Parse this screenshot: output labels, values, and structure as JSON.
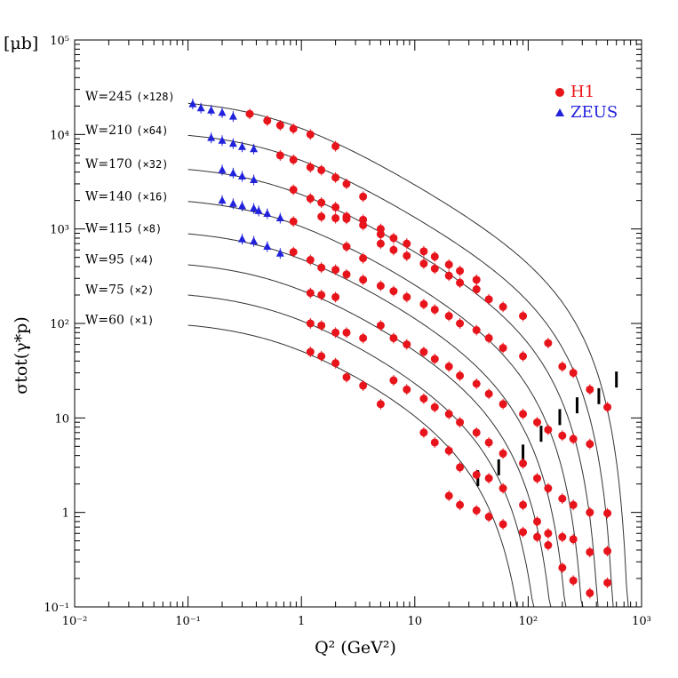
{
  "chart_data": {
    "type": "scatter",
    "title": "",
    "xlabel": "Q² (GeV²)",
    "ylabel": "σtot(γ*p)",
    "y_unit": "[μb]",
    "x_scale": "log",
    "y_scale": "log",
    "xlim": [
      0.01,
      1000
    ],
    "ylim": [
      0.1,
      100000
    ],
    "x_ticks": [
      {
        "value": 0.01,
        "label": "10⁻²"
      },
      {
        "value": 0.1,
        "label": "10⁻¹"
      },
      {
        "value": 1,
        "label": "1"
      },
      {
        "value": 10,
        "label": "10"
      },
      {
        "value": 100,
        "label": "10²"
      },
      {
        "value": 1000,
        "label": "10³"
      }
    ],
    "y_ticks": [
      {
        "value": 0.1,
        "label": "10⁻¹"
      },
      {
        "value": 1,
        "label": "1"
      },
      {
        "value": 10,
        "label": "10"
      },
      {
        "value": 100,
        "label": "10²"
      },
      {
        "value": 1000,
        "label": "10³"
      },
      {
        "value": 10000,
        "label": "10⁴"
      },
      {
        "value": 100000,
        "label": "10⁵"
      }
    ],
    "grid": false,
    "legend_position": "top-right",
    "legend": [
      {
        "name": "H1",
        "marker": "circle",
        "color": "#e8141b"
      },
      {
        "name": "ZEUS",
        "marker": "triangle",
        "color": "#2222dd"
      }
    ],
    "curve_labels": [
      {
        "w": "W=245",
        "mult": "(×128)",
        "y": 25000
      },
      {
        "w": "W=210",
        "mult": "(×64)",
        "y": 11000
      },
      {
        "w": "W=170",
        "mult": "(×32)",
        "y": 4800
      },
      {
        "w": "W=140",
        "mult": "(×16)",
        "y": 2200
      },
      {
        "w": "W=115",
        "mult": "(×8)",
        "y": 1000
      },
      {
        "w": "W=95",
        "mult": "(×4)",
        "y": 470
      },
      {
        "w": "W=75",
        "mult": "(×2)",
        "y": 225
      },
      {
        "w": "W=60",
        "mult": "(×1)",
        "y": 108
      }
    ],
    "curves": [
      {
        "w": 245,
        "norm": 24000,
        "q0": 0.55,
        "p": 0.7,
        "s": 820
      },
      {
        "w": 210,
        "norm": 11000,
        "q0": 0.55,
        "p": 0.7,
        "s": 620
      },
      {
        "w": 170,
        "norm": 4800,
        "q0": 0.55,
        "p": 0.7,
        "s": 470
      },
      {
        "w": 140,
        "norm": 2200,
        "q0": 0.55,
        "p": 0.7,
        "s": 350
      },
      {
        "w": 115,
        "norm": 1000,
        "q0": 0.55,
        "p": 0.7,
        "s": 260
      },
      {
        "w": 95,
        "norm": 470,
        "q0": 0.55,
        "p": 0.7,
        "s": 200
      },
      {
        "w": 75,
        "norm": 225,
        "q0": 0.55,
        "p": 0.7,
        "s": 150
      },
      {
        "w": 60,
        "norm": 108,
        "q0": 0.55,
        "p": 0.7,
        "s": 115
      }
    ],
    "series": [
      {
        "name": "ZEUS",
        "marker": "triangle",
        "color": "#2222dd",
        "points": [
          [
            0.11,
            21000
          ],
          [
            0.13,
            19000
          ],
          [
            0.16,
            18000
          ],
          [
            0.2,
            17000
          ],
          [
            0.25,
            15500
          ],
          [
            0.16,
            9200
          ],
          [
            0.2,
            8600
          ],
          [
            0.25,
            8000
          ],
          [
            0.3,
            7400
          ],
          [
            0.38,
            7000
          ],
          [
            0.2,
            4200
          ],
          [
            0.25,
            3900
          ],
          [
            0.3,
            3600
          ],
          [
            0.38,
            3300
          ],
          [
            0.2,
            2000
          ],
          [
            0.25,
            1850
          ],
          [
            0.3,
            1750
          ],
          [
            0.38,
            1650
          ],
          [
            0.42,
            1550
          ],
          [
            0.5,
            1450
          ],
          [
            0.65,
            1300
          ],
          [
            0.3,
            780
          ],
          [
            0.38,
            740
          ],
          [
            0.5,
            650
          ],
          [
            0.65,
            550
          ]
        ]
      },
      {
        "name": "H1",
        "marker": "circle",
        "color": "#e8141b",
        "points": [
          [
            0.35,
            16500
          ],
          [
            0.5,
            14000
          ],
          [
            0.65,
            12500
          ],
          [
            0.85,
            11500
          ],
          [
            1.2,
            10000
          ],
          [
            2.0,
            7500
          ],
          [
            0.65,
            6000
          ],
          [
            0.85,
            5400
          ],
          [
            1.2,
            4500
          ],
          [
            1.5,
            4200
          ],
          [
            2.0,
            3500
          ],
          [
            2.5,
            3000
          ],
          [
            3.5,
            2200
          ],
          [
            0.85,
            2600
          ],
          [
            1.2,
            2100
          ],
          [
            1.5,
            1900
          ],
          [
            2.0,
            1700
          ],
          [
            2.5,
            1350
          ],
          [
            3.5,
            1250
          ],
          [
            5.0,
            1000
          ],
          [
            0.85,
            1200
          ],
          [
            1.5,
            1350
          ],
          [
            2.0,
            1300
          ],
          [
            2.5,
            1280
          ],
          [
            3.5,
            1100
          ],
          [
            5.0,
            880
          ],
          [
            6.5,
            800
          ],
          [
            8.5,
            700
          ],
          [
            12,
            580
          ],
          [
            15,
            510
          ],
          [
            20,
            420
          ],
          [
            25,
            360
          ],
          [
            35,
            290
          ],
          [
            0.85,
            570
          ],
          [
            1.2,
            470
          ],
          [
            1.5,
            390
          ],
          [
            2.0,
            370
          ],
          [
            2.5,
            650
          ],
          [
            3.5,
            490
          ],
          [
            5.0,
            700
          ],
          [
            6.5,
            600
          ],
          [
            8.5,
            520
          ],
          [
            12,
            430
          ],
          [
            15,
            380
          ],
          [
            20,
            320
          ],
          [
            25,
            270
          ],
          [
            35,
            230
          ],
          [
            45,
            180
          ],
          [
            60,
            150
          ],
          [
            90,
            120
          ],
          [
            1.2,
            210
          ],
          [
            1.5,
            200
          ],
          [
            2.0,
            190
          ],
          [
            2.5,
            330
          ],
          [
            3.5,
            290
          ],
          [
            5.0,
            250
          ],
          [
            6.5,
            220
          ],
          [
            8.5,
            190
          ],
          [
            12,
            160
          ],
          [
            15,
            140
          ],
          [
            20,
            120
          ],
          [
            25,
            100
          ],
          [
            35,
            85
          ],
          [
            45,
            70
          ],
          [
            60,
            55
          ],
          [
            90,
            45
          ],
          [
            150,
            62
          ],
          [
            200,
            35
          ],
          [
            250,
            30
          ],
          [
            350,
            20
          ],
          [
            500,
            13
          ],
          [
            1.2,
            100
          ],
          [
            1.5,
            95
          ],
          [
            2.0,
            80
          ],
          [
            2.5,
            80
          ],
          [
            3.5,
            70
          ],
          [
            5.0,
            95
          ],
          [
            6.5,
            70
          ],
          [
            8.5,
            60
          ],
          [
            12,
            50
          ],
          [
            15,
            42
          ],
          [
            20,
            35
          ],
          [
            25,
            28
          ],
          [
            35,
            23
          ],
          [
            45,
            18
          ],
          [
            60,
            14
          ],
          [
            90,
            11
          ],
          [
            120,
            9
          ],
          [
            150,
            7.5
          ],
          [
            200,
            6.5
          ],
          [
            250,
            6
          ],
          [
            350,
            5.3
          ],
          [
            1.2,
            50
          ],
          [
            1.5,
            45
          ],
          [
            2.0,
            38
          ],
          [
            2.5,
            27
          ],
          [
            3.5,
            22
          ],
          [
            5.0,
            14
          ],
          [
            6.5,
            25
          ],
          [
            8.5,
            20
          ],
          [
            12,
            16
          ],
          [
            15,
            13
          ],
          [
            20,
            11
          ],
          [
            25,
            9
          ],
          [
            35,
            7
          ],
          [
            45,
            5.5
          ],
          [
            60,
            4.2
          ],
          [
            90,
            3.3
          ],
          [
            120,
            2.3
          ],
          [
            150,
            1.8
          ],
          [
            200,
            1.4
          ],
          [
            250,
            1.2
          ],
          [
            350,
            1.0
          ],
          [
            500,
            0.98
          ],
          [
            12,
            7
          ],
          [
            15,
            5.5
          ],
          [
            20,
            4.5
          ],
          [
            25,
            3
          ],
          [
            35,
            2.5
          ],
          [
            45,
            2.3
          ],
          [
            60,
            1.8
          ],
          [
            90,
            1.2
          ],
          [
            120,
            0.8
          ],
          [
            150,
            0.6
          ],
          [
            200,
            0.55
          ],
          [
            250,
            0.52
          ],
          [
            350,
            0.38
          ],
          [
            500,
            0.39
          ],
          [
            20,
            1.5
          ],
          [
            25,
            1.2
          ],
          [
            35,
            1.05
          ],
          [
            45,
            0.9
          ],
          [
            60,
            0.75
          ],
          [
            90,
            0.62
          ],
          [
            120,
            0.55
          ],
          [
            150,
            0.45
          ],
          [
            200,
            0.26
          ],
          [
            250,
            0.19
          ],
          [
            350,
            0.14
          ],
          [
            500,
            0.18
          ]
        ]
      }
    ],
    "kinematic_limit_marks": [
      [
        36,
        2.3
      ],
      [
        55,
        3.0
      ],
      [
        90,
        4.3
      ],
      [
        130,
        6.8
      ],
      [
        190,
        10.2
      ],
      [
        270,
        13.6
      ],
      [
        420,
        17.0
      ],
      [
        600,
        25.5
      ]
    ]
  }
}
